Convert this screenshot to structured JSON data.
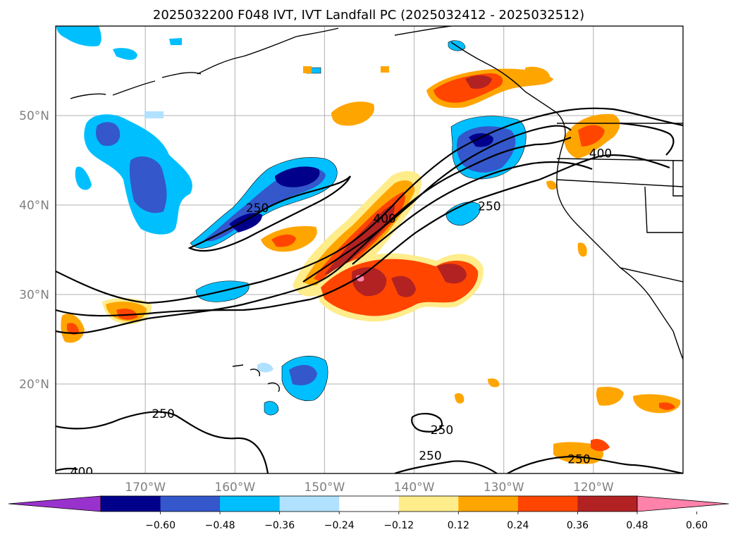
{
  "title": "2025032200 F048 IVT, IVT Landfall PC (2025032412 - 2025032512)",
  "map": {
    "lat_ticks": [
      {
        "label": "50°N",
        "lat": 50
      },
      {
        "label": "40°N",
        "lat": 40
      },
      {
        "label": "30°N",
        "lat": 30
      },
      {
        "label": "20°N",
        "lat": 20
      }
    ],
    "lon_ticks": [
      {
        "label": "170°W",
        "lon": -170
      },
      {
        "label": "160°W",
        "lon": -160
      },
      {
        "label": "150°W",
        "lon": -150
      },
      {
        "label": "140°W",
        "lon": -140
      },
      {
        "label": "130°W",
        "lon": -130
      },
      {
        "label": "120°W",
        "lon": -120
      }
    ],
    "ivt_contour_labels": [
      {
        "text": "250",
        "lat": 39.7,
        "lon": -157.5
      },
      {
        "text": "400",
        "lat": 38.5,
        "lon": -143.3
      },
      {
        "text": "250",
        "lat": 39.9,
        "lon": -131.6
      },
      {
        "text": "400",
        "lat": 45.8,
        "lon": -119.2
      },
      {
        "text": "250",
        "lat": 16.7,
        "lon": -168.0
      },
      {
        "text": "250",
        "lat": 14.9,
        "lon": -136.9
      },
      {
        "text": "250",
        "lat": 12.0,
        "lon": -138.2
      },
      {
        "text": "250",
        "lat": 11.6,
        "lon": -121.6
      },
      {
        "text": "400",
        "lat": 10.2,
        "lon": -177.1
      }
    ]
  },
  "colorbar": {
    "ticks": [
      "−0.60",
      "−0.48",
      "−0.36",
      "−0.24",
      "−0.12",
      "0.12",
      "0.24",
      "0.36",
      "0.48",
      "0.60"
    ],
    "under_color": "#9932cc",
    "colors": [
      "#00008b",
      "#3457cc",
      "#00bfff",
      "#b0e2ff",
      "#ffffff",
      "#ffec8b",
      "#ffa500",
      "#ff4500",
      "#b22222"
    ],
    "over_color": "#ff82ab"
  }
}
